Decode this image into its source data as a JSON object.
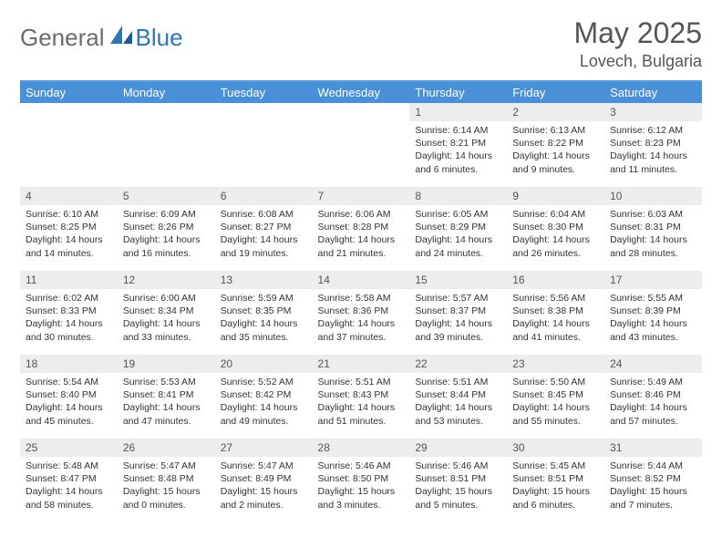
{
  "logo": {
    "text1": "General",
    "text2": "Blue"
  },
  "title": "May 2025",
  "location": "Lovech, Bulgaria",
  "colors": {
    "header_bg": "#4a90d9",
    "header_text": "#ffffff",
    "daynum_bg": "#ededed",
    "divider": "#5b9bd5",
    "logo_gray": "#6b6b6b",
    "logo_blue": "#2e75b6"
  },
  "weekdays": [
    "Sunday",
    "Monday",
    "Tuesday",
    "Wednesday",
    "Thursday",
    "Friday",
    "Saturday"
  ],
  "weeks": [
    [
      {
        "empty": true
      },
      {
        "empty": true
      },
      {
        "empty": true
      },
      {
        "empty": true
      },
      {
        "day": "1",
        "sunrise": "Sunrise: 6:14 AM",
        "sunset": "Sunset: 8:21 PM",
        "daylight": "Daylight: 14 hours and 6 minutes."
      },
      {
        "day": "2",
        "sunrise": "Sunrise: 6:13 AM",
        "sunset": "Sunset: 8:22 PM",
        "daylight": "Daylight: 14 hours and 9 minutes."
      },
      {
        "day": "3",
        "sunrise": "Sunrise: 6:12 AM",
        "sunset": "Sunset: 8:23 PM",
        "daylight": "Daylight: 14 hours and 11 minutes."
      }
    ],
    [
      {
        "day": "4",
        "sunrise": "Sunrise: 6:10 AM",
        "sunset": "Sunset: 8:25 PM",
        "daylight": "Daylight: 14 hours and 14 minutes."
      },
      {
        "day": "5",
        "sunrise": "Sunrise: 6:09 AM",
        "sunset": "Sunset: 8:26 PM",
        "daylight": "Daylight: 14 hours and 16 minutes."
      },
      {
        "day": "6",
        "sunrise": "Sunrise: 6:08 AM",
        "sunset": "Sunset: 8:27 PM",
        "daylight": "Daylight: 14 hours and 19 minutes."
      },
      {
        "day": "7",
        "sunrise": "Sunrise: 6:06 AM",
        "sunset": "Sunset: 8:28 PM",
        "daylight": "Daylight: 14 hours and 21 minutes."
      },
      {
        "day": "8",
        "sunrise": "Sunrise: 6:05 AM",
        "sunset": "Sunset: 8:29 PM",
        "daylight": "Daylight: 14 hours and 24 minutes."
      },
      {
        "day": "9",
        "sunrise": "Sunrise: 6:04 AM",
        "sunset": "Sunset: 8:30 PM",
        "daylight": "Daylight: 14 hours and 26 minutes."
      },
      {
        "day": "10",
        "sunrise": "Sunrise: 6:03 AM",
        "sunset": "Sunset: 8:31 PM",
        "daylight": "Daylight: 14 hours and 28 minutes."
      }
    ],
    [
      {
        "day": "11",
        "sunrise": "Sunrise: 6:02 AM",
        "sunset": "Sunset: 8:33 PM",
        "daylight": "Daylight: 14 hours and 30 minutes."
      },
      {
        "day": "12",
        "sunrise": "Sunrise: 6:00 AM",
        "sunset": "Sunset: 8:34 PM",
        "daylight": "Daylight: 14 hours and 33 minutes."
      },
      {
        "day": "13",
        "sunrise": "Sunrise: 5:59 AM",
        "sunset": "Sunset: 8:35 PM",
        "daylight": "Daylight: 14 hours and 35 minutes."
      },
      {
        "day": "14",
        "sunrise": "Sunrise: 5:58 AM",
        "sunset": "Sunset: 8:36 PM",
        "daylight": "Daylight: 14 hours and 37 minutes."
      },
      {
        "day": "15",
        "sunrise": "Sunrise: 5:57 AM",
        "sunset": "Sunset: 8:37 PM",
        "daylight": "Daylight: 14 hours and 39 minutes."
      },
      {
        "day": "16",
        "sunrise": "Sunrise: 5:56 AM",
        "sunset": "Sunset: 8:38 PM",
        "daylight": "Daylight: 14 hours and 41 minutes."
      },
      {
        "day": "17",
        "sunrise": "Sunrise: 5:55 AM",
        "sunset": "Sunset: 8:39 PM",
        "daylight": "Daylight: 14 hours and 43 minutes."
      }
    ],
    [
      {
        "day": "18",
        "sunrise": "Sunrise: 5:54 AM",
        "sunset": "Sunset: 8:40 PM",
        "daylight": "Daylight: 14 hours and 45 minutes."
      },
      {
        "day": "19",
        "sunrise": "Sunrise: 5:53 AM",
        "sunset": "Sunset: 8:41 PM",
        "daylight": "Daylight: 14 hours and 47 minutes."
      },
      {
        "day": "20",
        "sunrise": "Sunrise: 5:52 AM",
        "sunset": "Sunset: 8:42 PM",
        "daylight": "Daylight: 14 hours and 49 minutes."
      },
      {
        "day": "21",
        "sunrise": "Sunrise: 5:51 AM",
        "sunset": "Sunset: 8:43 PM",
        "daylight": "Daylight: 14 hours and 51 minutes."
      },
      {
        "day": "22",
        "sunrise": "Sunrise: 5:51 AM",
        "sunset": "Sunset: 8:44 PM",
        "daylight": "Daylight: 14 hours and 53 minutes."
      },
      {
        "day": "23",
        "sunrise": "Sunrise: 5:50 AM",
        "sunset": "Sunset: 8:45 PM",
        "daylight": "Daylight: 14 hours and 55 minutes."
      },
      {
        "day": "24",
        "sunrise": "Sunrise: 5:49 AM",
        "sunset": "Sunset: 8:46 PM",
        "daylight": "Daylight: 14 hours and 57 minutes."
      }
    ],
    [
      {
        "day": "25",
        "sunrise": "Sunrise: 5:48 AM",
        "sunset": "Sunset: 8:47 PM",
        "daylight": "Daylight: 14 hours and 58 minutes."
      },
      {
        "day": "26",
        "sunrise": "Sunrise: 5:47 AM",
        "sunset": "Sunset: 8:48 PM",
        "daylight": "Daylight: 15 hours and 0 minutes."
      },
      {
        "day": "27",
        "sunrise": "Sunrise: 5:47 AM",
        "sunset": "Sunset: 8:49 PM",
        "daylight": "Daylight: 15 hours and 2 minutes."
      },
      {
        "day": "28",
        "sunrise": "Sunrise: 5:46 AM",
        "sunset": "Sunset: 8:50 PM",
        "daylight": "Daylight: 15 hours and 3 minutes."
      },
      {
        "day": "29",
        "sunrise": "Sunrise: 5:46 AM",
        "sunset": "Sunset: 8:51 PM",
        "daylight": "Daylight: 15 hours and 5 minutes."
      },
      {
        "day": "30",
        "sunrise": "Sunrise: 5:45 AM",
        "sunset": "Sunset: 8:51 PM",
        "daylight": "Daylight: 15 hours and 6 minutes."
      },
      {
        "day": "31",
        "sunrise": "Sunrise: 5:44 AM",
        "sunset": "Sunset: 8:52 PM",
        "daylight": "Daylight: 15 hours and 7 minutes."
      }
    ]
  ]
}
